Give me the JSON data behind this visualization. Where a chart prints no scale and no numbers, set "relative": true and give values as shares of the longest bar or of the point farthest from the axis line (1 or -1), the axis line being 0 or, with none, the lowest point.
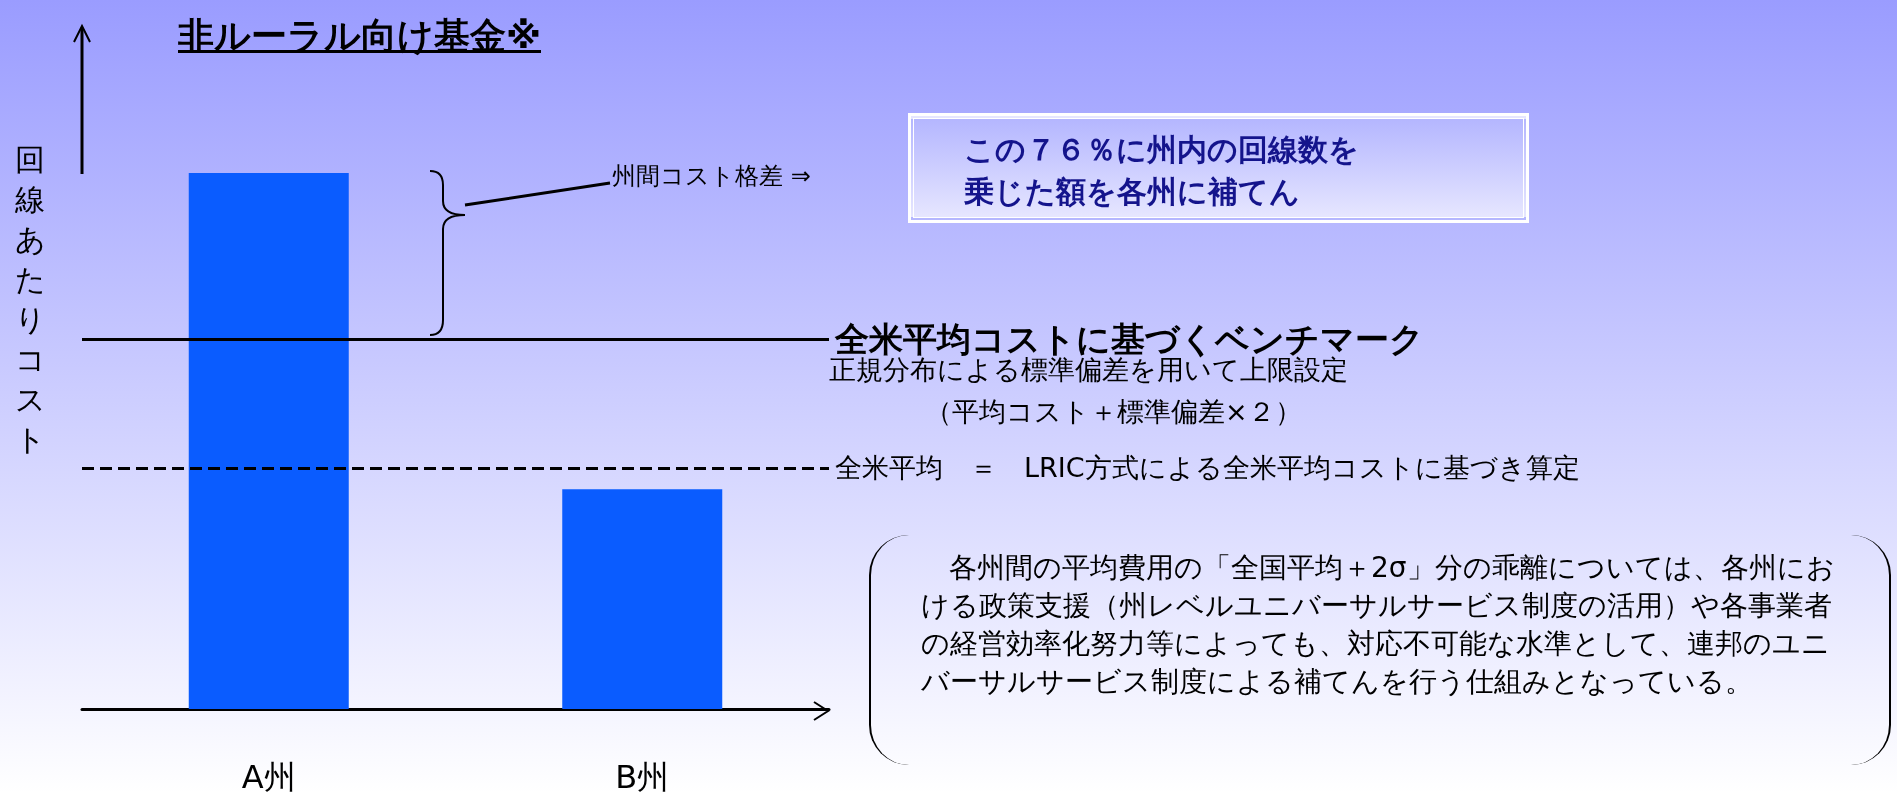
{
  "chart_data": {
    "type": "bar",
    "title": "非ルーラル向け基金※",
    "ylabel": "回線あたりコスト",
    "relative": true,
    "categories": [
      "A州",
      "B州"
    ],
    "values": [
      1,
      0.41
    ],
    "color": "#0a5cff",
    "ref_lines": [
      {
        "axis": "y",
        "value": 0.69,
        "label": "全米平均コストに基づくベンチマーク",
        "color": "#000000",
        "line_style": "solid"
      },
      {
        "axis": "y",
        "value": 0.45,
        "label": "全米平均　＝　LRIC方式による全米平均コストに基づき算定",
        "color": "#000000",
        "line_style": "dashed"
      }
    ],
    "annotations": [
      "州間コスト格差 ⇒",
      "この７６％に州内の回線数を乗じた額を各州に補てん",
      "正規分布による標準偏差を用いて上限設定",
      "（平均コスト＋標準偏差×２）",
      "　各州間の平均費用の「全国平均＋2σ」分の乖離については、各州における政策支援（州レベルユニバーサルサービス制度の活用）や各事業者の経営効率化努力等によっても、対応不可能な水準として、連邦のユニバーサルサービス制度による補てんを行う仕組みとなっている。"
    ],
    "grid": false
  }
}
